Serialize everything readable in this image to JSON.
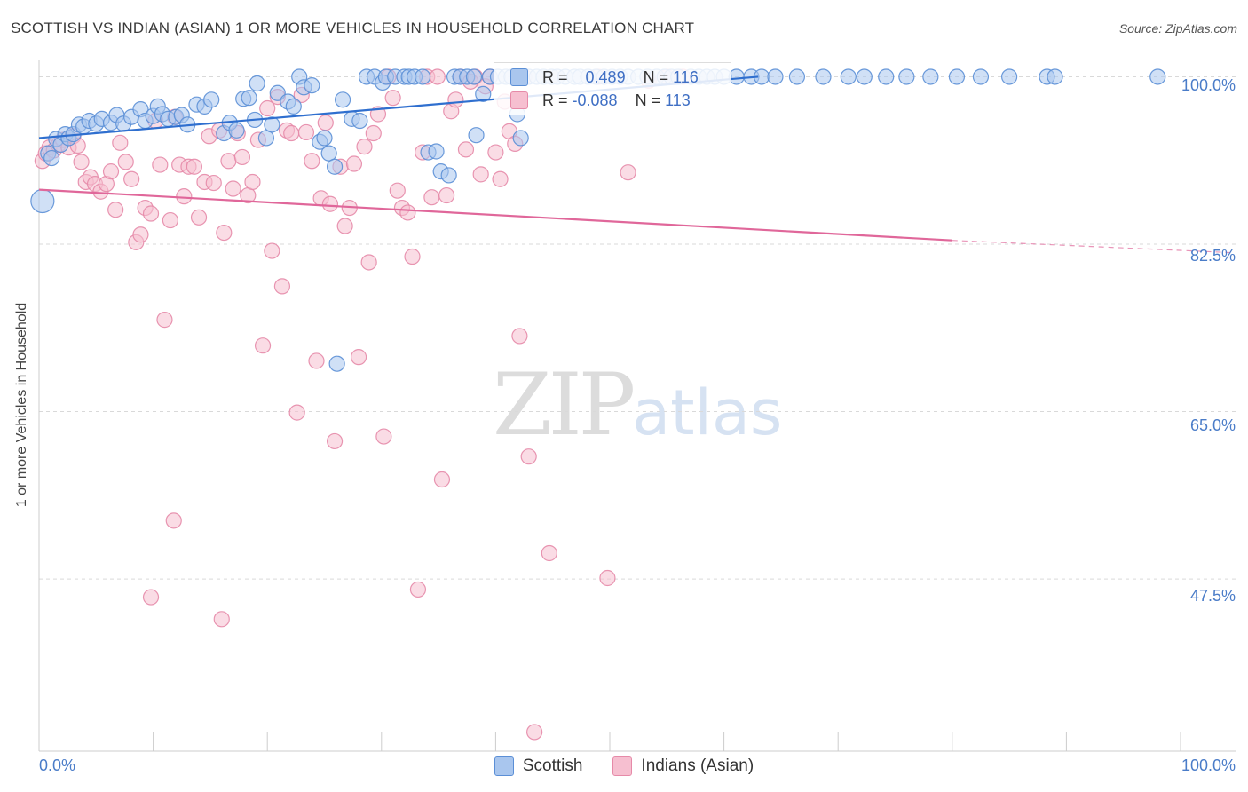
{
  "header": {
    "title": "SCOTTISH VS INDIAN (ASIAN) 1 OR MORE VEHICLES IN HOUSEHOLD CORRELATION CHART",
    "source": "Source: ZipAtlas.com"
  },
  "watermark": {
    "zip": "ZIP",
    "atlas": "atlas"
  },
  "stats": {
    "scottish": {
      "r_label": "R =",
      "r": "0.489",
      "n_label": "N =",
      "n": "116"
    },
    "indian": {
      "r_label": "R =",
      "r": "-0.088",
      "n_label": "N =",
      "n": "113"
    }
  },
  "legend": {
    "scottish": "Scottish",
    "indian": "Indians (Asian)"
  },
  "axis": {
    "ylabel": "1 or more Vehicles in Household",
    "x_left": "0.0%",
    "x_right": "100.0%",
    "y_ticks": [
      "100.0%",
      "82.5%",
      "65.0%",
      "47.5%"
    ]
  },
  "colors": {
    "scottish_fill": "#a9c6ee",
    "scottish_stroke": "#5b8fd6",
    "scottish_line": "#2f6fcf",
    "indian_fill": "#f6bfd0",
    "indian_stroke": "#e68aa8",
    "indian_line": "#e0679a"
  },
  "chart_data": {
    "type": "scatter",
    "title": "SCOTTISH VS INDIAN (ASIAN) 1 OR MORE VEHICLES IN HOUSEHOLD CORRELATION CHART",
    "xlabel": "",
    "ylabel": "1 or more Vehicles in Household",
    "xlim": [
      0,
      100
    ],
    "ylim": [
      29.5,
      100.6
    ],
    "y_ticks": [
      100,
      82.5,
      65,
      47.5
    ],
    "grid": true,
    "legend_placement": "bottom",
    "series": [
      {
        "name": "Scottish",
        "r": 0.489,
        "n": 116,
        "trend": {
          "x0": 0,
          "y0": 93.6,
          "x1": 63,
          "y1": 100.0,
          "dashed_to": null
        },
        "points": [
          [
            0.3,
            87
          ],
          [
            0.8,
            92
          ],
          [
            1.1,
            91.5
          ],
          [
            1.5,
            93.5
          ],
          [
            1.9,
            92.9
          ],
          [
            2.3,
            94
          ],
          [
            2.6,
            93.6
          ],
          [
            3.0,
            94
          ],
          [
            3.5,
            95
          ],
          [
            3.9,
            94.8
          ],
          [
            4.4,
            95.4
          ],
          [
            5.0,
            95.1
          ],
          [
            5.5,
            95.6
          ],
          [
            6.3,
            95.2
          ],
          [
            6.8,
            96
          ],
          [
            7.4,
            95.1
          ],
          [
            8.1,
            95.8
          ],
          [
            8.9,
            96.6
          ],
          [
            9.3,
            95.4
          ],
          [
            10.0,
            95.9
          ],
          [
            10.4,
            96.9
          ],
          [
            10.8,
            96.1
          ],
          [
            11.3,
            95.6
          ],
          [
            12.0,
            95.8
          ],
          [
            12.5,
            96
          ],
          [
            13.0,
            95
          ],
          [
            13.8,
            97.1
          ],
          [
            14.5,
            96.9
          ],
          [
            15.1,
            97.6
          ],
          [
            16.2,
            94.1
          ],
          [
            16.7,
            95.2
          ],
          [
            17.3,
            94.4
          ],
          [
            17.9,
            97.7
          ],
          [
            18.4,
            97.8
          ],
          [
            19.1,
            99.3
          ],
          [
            18.9,
            95.5
          ],
          [
            19.9,
            93.6
          ],
          [
            20.4,
            95
          ],
          [
            20.9,
            98.3
          ],
          [
            21.8,
            97.4
          ],
          [
            22.3,
            96.9
          ],
          [
            22.8,
            100
          ],
          [
            23.2,
            98.9
          ],
          [
            23.9,
            99.1
          ],
          [
            24.6,
            93.2
          ],
          [
            25.0,
            93.6
          ],
          [
            25.4,
            92
          ],
          [
            25.9,
            90.6
          ],
          [
            26.6,
            97.6
          ],
          [
            26.1,
            70
          ],
          [
            27.4,
            95.6
          ],
          [
            28.1,
            95.4
          ],
          [
            28.7,
            100
          ],
          [
            29.4,
            100
          ],
          [
            30.1,
            99.4
          ],
          [
            30.4,
            100
          ],
          [
            31.2,
            100
          ],
          [
            32.0,
            100
          ],
          [
            32.4,
            100
          ],
          [
            32.9,
            100
          ],
          [
            33.6,
            100
          ],
          [
            34.1,
            92.1
          ],
          [
            34.8,
            92.2
          ],
          [
            35.2,
            90.1
          ],
          [
            35.9,
            89.7
          ],
          [
            36.4,
            100
          ],
          [
            36.9,
            100
          ],
          [
            37.5,
            100
          ],
          [
            38.1,
            100
          ],
          [
            38.9,
            98.2
          ],
          [
            39.5,
            100
          ],
          [
            40.2,
            100
          ],
          [
            40.9,
            100
          ],
          [
            41.4,
            100
          ],
          [
            42.1,
            100
          ],
          [
            42.9,
            100
          ],
          [
            43.6,
            100
          ],
          [
            44.2,
            100
          ],
          [
            44.9,
            100
          ],
          [
            45.4,
            100
          ],
          [
            46.1,
            100
          ],
          [
            46.9,
            100
          ],
          [
            47.4,
            100
          ],
          [
            48.1,
            100
          ],
          [
            48.8,
            100
          ],
          [
            49.5,
            100
          ],
          [
            50.2,
            100
          ],
          [
            50.9,
            100
          ],
          [
            51.6,
            100
          ],
          [
            52.5,
            100
          ],
          [
            53.3,
            100
          ],
          [
            54.1,
            100
          ],
          [
            54.8,
            100
          ],
          [
            55.4,
            100
          ],
          [
            56.0,
            100
          ],
          [
            57.1,
            100
          ],
          [
            57.8,
            100
          ],
          [
            58.5,
            100
          ],
          [
            59.2,
            100
          ],
          [
            60.0,
            100
          ],
          [
            61.1,
            100
          ],
          [
            62.4,
            100
          ],
          [
            63.3,
            100
          ],
          [
            64.5,
            100
          ],
          [
            66.4,
            100
          ],
          [
            68.7,
            100
          ],
          [
            70.9,
            100
          ],
          [
            72.3,
            100
          ],
          [
            74.2,
            100
          ],
          [
            76.0,
            100
          ],
          [
            78.1,
            100
          ],
          [
            80.4,
            100
          ],
          [
            82.5,
            100
          ],
          [
            85.0,
            100
          ],
          [
            88.3,
            100
          ],
          [
            89.0,
            100
          ],
          [
            98.0,
            100
          ],
          [
            42.2,
            93.6
          ],
          [
            41.9,
            96.1
          ],
          [
            38.3,
            93.9
          ]
        ]
      },
      {
        "name": "Indians (Asian)",
        "r": -0.088,
        "n": 113,
        "trend": {
          "x0": 0,
          "y0": 88.2,
          "x1": 80,
          "y1": 82.9,
          "dashed_to": [
            100,
            81.6
          ]
        },
        "points": [
          [
            0.3,
            91.2
          ],
          [
            0.6,
            92
          ],
          [
            0.9,
            92.6
          ],
          [
            1.3,
            92.3
          ],
          [
            1.7,
            92.9
          ],
          [
            2.1,
            93.4
          ],
          [
            2.6,
            92.6
          ],
          [
            3.0,
            93.8
          ],
          [
            3.4,
            92.8
          ],
          [
            3.7,
            91.1
          ],
          [
            4.1,
            89
          ],
          [
            4.5,
            89.5
          ],
          [
            4.9,
            88.8
          ],
          [
            5.4,
            88
          ],
          [
            5.9,
            88.8
          ],
          [
            6.3,
            90.1
          ],
          [
            6.7,
            86.1
          ],
          [
            7.1,
            93.1
          ],
          [
            7.6,
            91.1
          ],
          [
            8.1,
            89.3
          ],
          [
            8.5,
            82.7
          ],
          [
            8.9,
            83.5
          ],
          [
            9.3,
            86.3
          ],
          [
            9.8,
            85.7
          ],
          [
            10.2,
            95.4
          ],
          [
            10.6,
            90.8
          ],
          [
            11.0,
            74.6
          ],
          [
            11.5,
            85
          ],
          [
            11.9,
            95.8
          ],
          [
            12.3,
            90.8
          ],
          [
            12.7,
            87.5
          ],
          [
            13.1,
            90.6
          ],
          [
            13.6,
            90.6
          ],
          [
            14.0,
            85.3
          ],
          [
            14.5,
            89
          ],
          [
            14.9,
            93.8
          ],
          [
            15.3,
            88.9
          ],
          [
            15.8,
            94.4
          ],
          [
            16.2,
            83.7
          ],
          [
            16.6,
            91.2
          ],
          [
            17.0,
            88.3
          ],
          [
            17.4,
            94.1
          ],
          [
            17.8,
            91.6
          ],
          [
            18.3,
            87.6
          ],
          [
            18.7,
            89
          ],
          [
            19.2,
            93.4
          ],
          [
            19.6,
            71.9
          ],
          [
            20.0,
            96.7
          ],
          [
            20.4,
            81.8
          ],
          [
            20.9,
            97.9
          ],
          [
            21.3,
            78.1
          ],
          [
            21.7,
            94.4
          ],
          [
            22.1,
            94.1
          ],
          [
            22.6,
            64.9
          ],
          [
            23.0,
            98.1
          ],
          [
            23.4,
            94.2
          ],
          [
            23.9,
            91.2
          ],
          [
            24.3,
            70.3
          ],
          [
            24.7,
            87.3
          ],
          [
            25.1,
            95.2
          ],
          [
            25.5,
            86.7
          ],
          [
            25.9,
            61.9
          ],
          [
            26.4,
            90.6
          ],
          [
            26.8,
            84.4
          ],
          [
            27.2,
            86.3
          ],
          [
            27.6,
            90.9
          ],
          [
            28.0,
            70.7
          ],
          [
            28.5,
            92.7
          ],
          [
            28.9,
            80.6
          ],
          [
            29.3,
            94.1
          ],
          [
            29.7,
            96.1
          ],
          [
            30.2,
            62.4
          ],
          [
            30.6,
            100
          ],
          [
            31.0,
            97.8
          ],
          [
            31.4,
            88.1
          ],
          [
            31.8,
            86.3
          ],
          [
            32.3,
            85.8
          ],
          [
            32.7,
            81.2
          ],
          [
            33.2,
            46.4
          ],
          [
            33.6,
            92.1
          ],
          [
            34.0,
            100
          ],
          [
            34.4,
            87.4
          ],
          [
            34.9,
            100
          ],
          [
            35.3,
            57.9
          ],
          [
            35.7,
            87.6
          ],
          [
            36.1,
            96.4
          ],
          [
            36.5,
            97.6
          ],
          [
            36.9,
            100
          ],
          [
            37.4,
            92.4
          ],
          [
            37.8,
            99.5
          ],
          [
            38.2,
            100
          ],
          [
            38.7,
            89.8
          ],
          [
            39.1,
            99
          ],
          [
            39.5,
            100
          ],
          [
            40.0,
            92.1
          ],
          [
            40.4,
            89.3
          ],
          [
            40.8,
            97.4
          ],
          [
            41.2,
            94.3
          ],
          [
            41.7,
            93
          ],
          [
            42.1,
            72.9
          ],
          [
            42.5,
            100
          ],
          [
            42.9,
            60.3
          ],
          [
            43.4,
            31.5
          ],
          [
            9.8,
            45.6
          ],
          [
            11.8,
            53.6
          ],
          [
            16.0,
            43.3
          ],
          [
            44.7,
            50.2
          ],
          [
            49.8,
            47.6
          ],
          [
            51.6,
            90
          ],
          [
            53.4,
            99.6
          ],
          [
            55.0,
            100
          ],
          [
            56.4,
            100
          ],
          [
            49.0,
            100
          ]
        ]
      }
    ]
  }
}
